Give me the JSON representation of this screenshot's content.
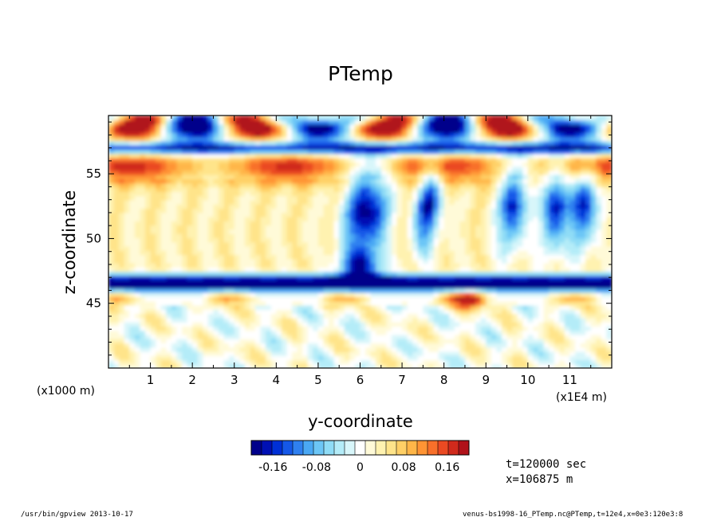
{
  "chart_data": {
    "type": "heatmap",
    "title": "PTemp",
    "xlabel": "y-coordinate",
    "ylabel": "z-coordinate",
    "x_units_note": "(x1E4 m)",
    "y_units_note": "(x1000 m)",
    "xlim": [
      0,
      12
    ],
    "ylim": [
      40,
      59.5
    ],
    "x_ticks": [
      "1",
      "2",
      "3",
      "4",
      "5",
      "6",
      "7",
      "8",
      "9",
      "10",
      "11"
    ],
    "y_ticks": [
      "45",
      "50",
      "55"
    ],
    "colorbar": {
      "range": [
        -0.2,
        0.2
      ],
      "tick_labels": [
        "-0.16",
        "-0.08",
        "0",
        "0.08",
        "0.16"
      ],
      "tick_values": [
        -0.16,
        -0.08,
        0,
        0.08,
        0.16
      ],
      "colors": [
        "#00008b",
        "#0010b4",
        "#0030d6",
        "#1558e8",
        "#2f80f0",
        "#4aa8f4",
        "#6cc6f6",
        "#8fdcf6",
        "#b4ecf8",
        "#d8f6fa",
        "#ffffff",
        "#fffad8",
        "#fff2b0",
        "#ffe48a",
        "#ffd066",
        "#ffb648",
        "#ff9434",
        "#f8702a",
        "#ea4a22",
        "#d02a1c",
        "#b0121a"
      ]
    },
    "field_features": [
      {
        "kind": "band",
        "z": 46.5,
        "value": -0.2,
        "desc": "strong negative layer"
      },
      {
        "kind": "band",
        "z": 55.5,
        "value": 0.14,
        "desc": "positive layer"
      },
      {
        "kind": "region",
        "z_range": [
          47.5,
          54
        ],
        "value": 0.05,
        "desc": "weak positive interior"
      },
      {
        "kind": "region",
        "z_range": [
          40,
          45
        ],
        "value": 0.0,
        "desc": "near-zero mixed lower layer"
      },
      {
        "kind": "plume",
        "y": 6.0,
        "z_range": [
          47,
          57
        ],
        "value": -0.16
      },
      {
        "kind": "plumes",
        "y": [
          7.5,
          9.5,
          10.5,
          11.2
        ],
        "z_range": [
          48,
          57
        ],
        "value": -0.14
      },
      {
        "kind": "cap",
        "z": 58.5,
        "value": 0.18,
        "desc": "alternating extremes near top"
      }
    ]
  },
  "info": {
    "time": "t=120000 sec",
    "x": "x=106875 m"
  },
  "footer": {
    "left": "/usr/bin/gpview   2013-10-17",
    "right": "venus-bs1998-16_PTemp.nc@PTemp,t=12e4,x=0e3:120e3:8"
  }
}
